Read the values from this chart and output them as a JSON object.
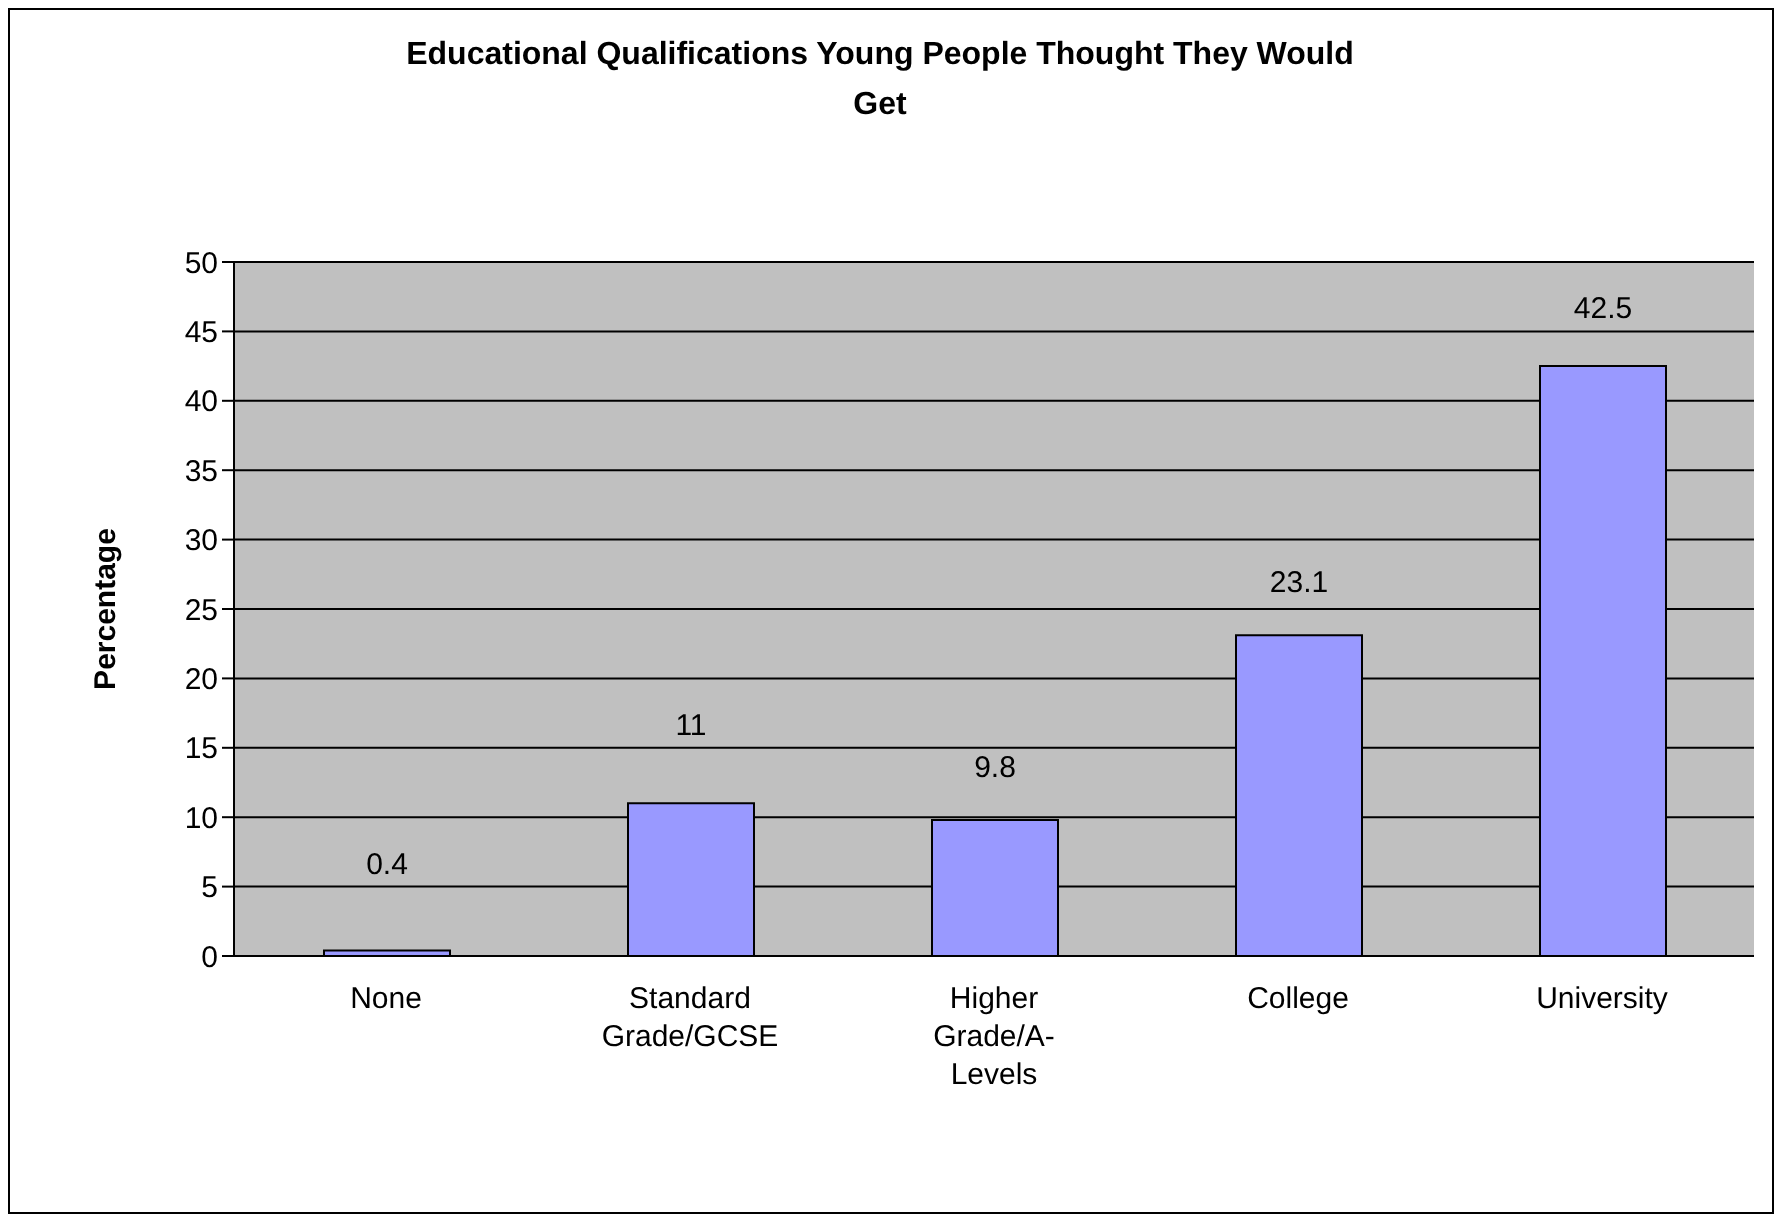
{
  "chart_data": {
    "type": "bar",
    "title": "Educational Qualifications Young People Thought They Would Get",
    "ylabel": "Percentage",
    "categories": [
      "None",
      "Standard Grade/GCSE",
      "Higher Grade/A-Levels",
      "College",
      "University"
    ],
    "values": [
      0.4,
      11,
      9.8,
      23.1,
      42.5
    ],
    "color": "#9999ff",
    "ylim": [
      0,
      50
    ],
    "yticks": [
      0,
      5,
      10,
      15,
      20,
      25,
      30,
      35,
      40,
      45,
      50
    ],
    "grid": "y",
    "data_labels": true,
    "legend": false
  }
}
